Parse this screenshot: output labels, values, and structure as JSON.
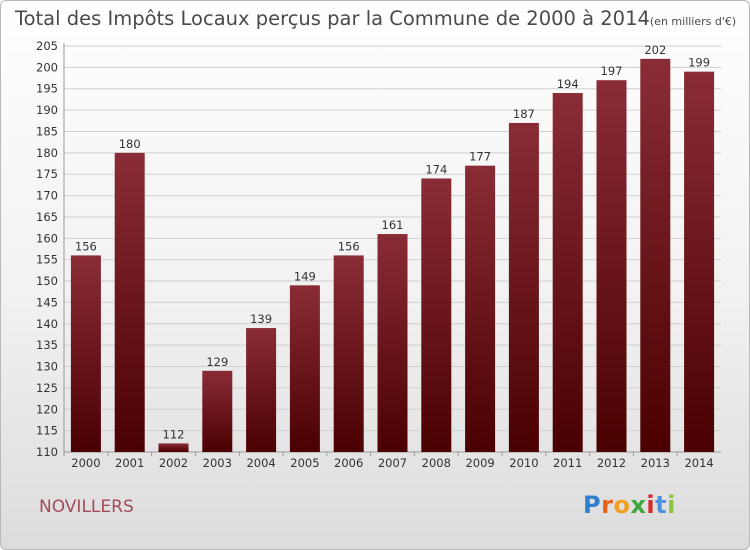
{
  "title": {
    "main": "Total des Impôts Locaux perçus par la Commune de 2000 à 2014",
    "unit": "(en milliers d'€)"
  },
  "commune": "NOVILLERS",
  "logo": {
    "letters": [
      "P",
      "r",
      "o",
      "x",
      "i",
      "t",
      "i"
    ],
    "colors": [
      "#2f7fd0",
      "#e8631a",
      "#f0a020",
      "#3da73d",
      "#d72a2a",
      "#4b94dd",
      "#8cc63f"
    ]
  },
  "colors": {
    "bar_top": "#8a2c36",
    "bar_bottom": "#4a0000",
    "grid": "#cfcfcf",
    "text": "#333333"
  },
  "chart_data": {
    "type": "bar",
    "title": "Total des Impôts Locaux perçus par la Commune de 2000 à 2014",
    "xlabel": "",
    "ylabel": "",
    "categories": [
      "2000",
      "2001",
      "2002",
      "2003",
      "2004",
      "2005",
      "2006",
      "2007",
      "2008",
      "2009",
      "2010",
      "2011",
      "2012",
      "2013",
      "2014"
    ],
    "values": [
      156,
      180,
      112,
      129,
      139,
      149,
      156,
      161,
      174,
      177,
      187,
      194,
      197,
      202,
      199
    ],
    "ylim": [
      110,
      205
    ],
    "yticks": [
      110,
      115,
      120,
      125,
      130,
      135,
      140,
      145,
      150,
      155,
      160,
      165,
      170,
      175,
      180,
      185,
      190,
      195,
      200,
      205
    ],
    "grid": true
  }
}
